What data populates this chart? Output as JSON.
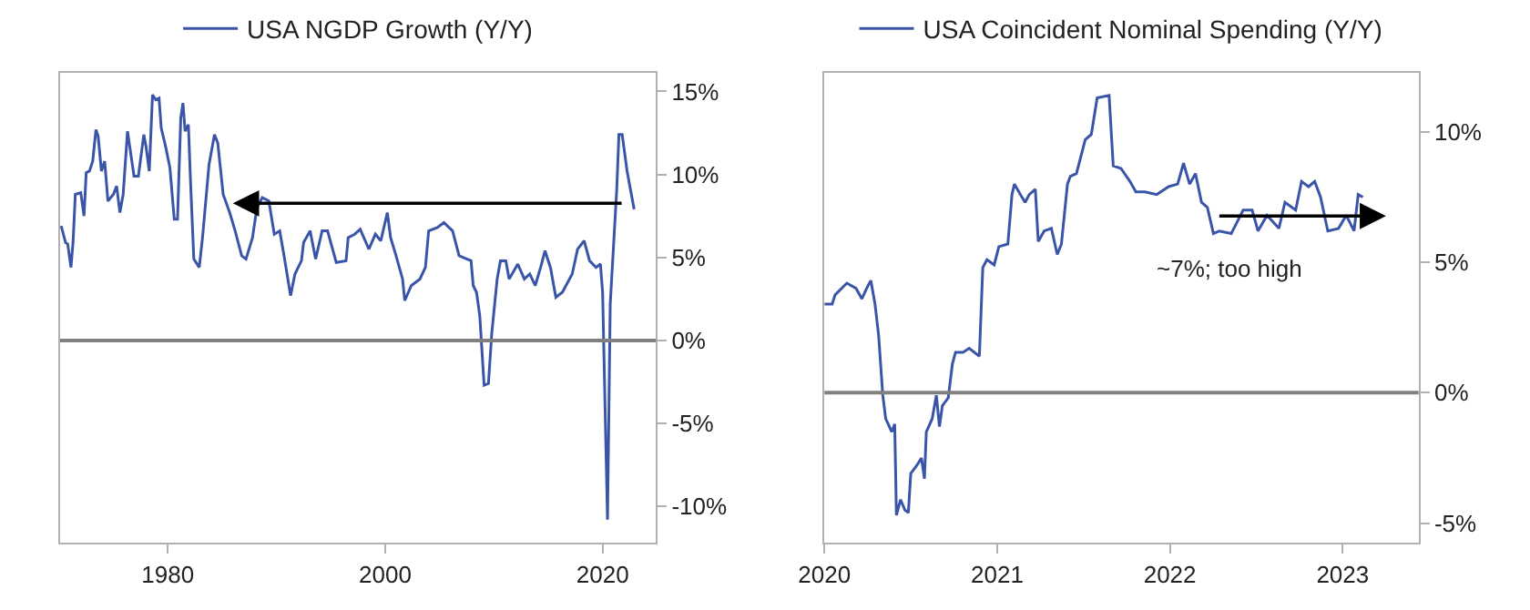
{
  "chart_data": [
    {
      "type": "line",
      "xlim": [
        1970.1,
        2024.9
      ],
      "ylim": [
        -12.2,
        16.1
      ],
      "xticks": [
        1980,
        2000,
        2020
      ],
      "yticks": [
        {
          "value": -10,
          "label": "-10%"
        },
        {
          "value": -5,
          "label": "-5%"
        },
        {
          "value": 0,
          "label": "0%"
        },
        {
          "value": 5,
          "label": "5%"
        },
        {
          "value": 10,
          "label": "10%"
        },
        {
          "value": 15,
          "label": "15%"
        }
      ],
      "grid": false,
      "legend": "top",
      "marker": "none",
      "line_style": "solid",
      "ref_lines": [
        {
          "axis": "y",
          "value": 0,
          "color": "#808080"
        }
      ],
      "series": [
        {
          "name": "USA NGDP Growth (Y/Y)",
          "color": "#3a55a8",
          "x": [
            1970.2,
            1970.6,
            1970.8,
            1971.1,
            1971.3,
            1971.5,
            1972.0,
            1972.3,
            1972.5,
            1972.8,
            1973.1,
            1973.4,
            1973.6,
            1973.9,
            1974.2,
            1974.5,
            1975.0,
            1975.3,
            1975.6,
            1975.9,
            1976.3,
            1976.5,
            1976.9,
            1977.3,
            1977.8,
            1978.0,
            1978.3,
            1978.6,
            1978.9,
            1979.2,
            1979.4,
            1979.8,
            1980.2,
            1980.6,
            1980.9,
            1981.2,
            1981.4,
            1981.6,
            1981.9,
            1982.1,
            1982.4,
            1982.9,
            1983.2,
            1983.8,
            1984.3,
            1984.6,
            1985.1,
            1985.7,
            1986.2,
            1986.8,
            1987.2,
            1987.8,
            1988.2,
            1988.7,
            1989.3,
            1989.8,
            1990.3,
            1990.7,
            1991.3,
            1991.7,
            1992.3,
            1992.5,
            1993.1,
            1993.6,
            1994.2,
            1994.7,
            1995.5,
            1996.4,
            1996.6,
            1997.2,
            1997.7,
            1998.5,
            1999.1,
            1999.6,
            2000.2,
            2000.5,
            2001.0,
            2001.6,
            2001.8,
            2002.4,
            2003.2,
            2003.7,
            2004.0,
            2004.8,
            2005.4,
            2006.2,
            2006.8,
            2007.9,
            2008.1,
            2008.4,
            2008.7,
            2009.1,
            2009.5,
            2009.8,
            2010.3,
            2010.6,
            2011.1,
            2011.4,
            2012.2,
            2012.8,
            2013.3,
            2013.8,
            2014.3,
            2014.7,
            2015.2,
            2015.7,
            2016.3,
            2017.2,
            2017.7,
            2018.3,
            2018.8,
            2019.4,
            2019.8,
            2020.0,
            2020.45,
            2020.7,
            2021.3,
            2021.5,
            2021.8,
            2022.25,
            2022.9
          ],
          "values": [
            6.9,
            5.9,
            5.8,
            4.4,
            6.0,
            8.8,
            8.9,
            7.5,
            10.1,
            10.2,
            10.8,
            12.7,
            12.3,
            10.2,
            10.8,
            8.4,
            8.8,
            9.3,
            7.7,
            8.8,
            12.6,
            11.7,
            9.9,
            9.9,
            12.4,
            11.7,
            10.2,
            14.8,
            14.5,
            14.6,
            12.8,
            11.7,
            10.4,
            7.3,
            7.3,
            13.4,
            14.3,
            12.6,
            13.0,
            9.5,
            4.9,
            4.4,
            6.2,
            10.6,
            12.4,
            11.9,
            8.8,
            7.7,
            6.6,
            5.1,
            4.9,
            6.2,
            8.0,
            8.6,
            8.4,
            6.4,
            6.6,
            5.1,
            2.7,
            4.0,
            4.8,
            5.9,
            6.6,
            4.9,
            6.6,
            6.6,
            4.7,
            4.8,
            6.2,
            6.4,
            6.7,
            5.5,
            6.4,
            6.0,
            7.7,
            6.2,
            5.1,
            3.7,
            2.4,
            3.3,
            3.7,
            4.4,
            6.6,
            6.8,
            7.1,
            6.6,
            5.1,
            4.8,
            3.3,
            2.9,
            1.5,
            -2.7,
            -2.6,
            0.4,
            3.7,
            4.8,
            4.8,
            3.7,
            4.6,
            3.7,
            4.0,
            3.3,
            4.4,
            5.4,
            4.4,
            2.6,
            2.9,
            4.0,
            5.5,
            6.0,
            4.8,
            4.4,
            4.6,
            2.9,
            -10.8,
            2.2,
            9.1,
            12.4,
            12.4,
            10.2,
            7.9
          ]
        }
      ]
    },
    {
      "type": "line",
      "xlim": [
        2020.0,
        2023.44
      ],
      "ylim": [
        -5.76,
        12.25
      ],
      "xticks": [
        2020,
        2021,
        2022,
        2023
      ],
      "yticks": [
        {
          "value": -5,
          "label": "-5%"
        },
        {
          "value": 0,
          "label": "0%"
        },
        {
          "value": 5,
          "label": "5%"
        },
        {
          "value": 10,
          "label": "10%"
        }
      ],
      "grid": false,
      "legend": "top",
      "marker": "none",
      "line_style": "solid",
      "ref_lines": [
        {
          "axis": "y",
          "value": 0,
          "color": "#808080"
        }
      ],
      "annotations": [
        "~7%; too high"
      ],
      "series": [
        {
          "name": "USA Coincident Nominal Spending (Y/Y)",
          "color": "#3a55a8",
          "x": [
            2020.0,
            2020.045,
            2020.062,
            2020.13,
            2020.183,
            2020.217,
            2020.252,
            2020.269,
            2020.293,
            2020.314,
            2020.338,
            2020.355,
            2020.39,
            2020.407,
            2020.417,
            2020.441,
            2020.466,
            2020.486,
            2020.5,
            2020.534,
            2020.562,
            2020.579,
            2020.59,
            2020.624,
            2020.648,
            2020.666,
            2020.683,
            2020.717,
            2020.741,
            2020.759,
            2020.803,
            2020.838,
            2020.897,
            2020.917,
            2020.941,
            2020.983,
            2021.01,
            2021.062,
            2021.086,
            2021.1,
            2021.134,
            2021.162,
            2021.186,
            2021.221,
            2021.238,
            2021.272,
            2021.314,
            2021.348,
            2021.372,
            2021.407,
            2021.424,
            2021.459,
            2021.51,
            2021.545,
            2021.579,
            2021.648,
            2021.672,
            2021.717,
            2021.769,
            2021.803,
            2021.855,
            2021.924,
            2021.993,
            2022.045,
            2022.079,
            2022.114,
            2022.148,
            2022.183,
            2022.217,
            2022.252,
            2022.286,
            2022.355,
            2022.424,
            2022.476,
            2022.51,
            2022.562,
            2022.631,
            2022.666,
            2022.728,
            2022.762,
            2022.803,
            2022.838,
            2022.872,
            2022.914,
            2022.976,
            2023.021,
            2023.066,
            2023.09,
            2023.117
          ],
          "values": [
            3.4,
            3.4,
            3.75,
            4.2,
            4.0,
            3.6,
            4.1,
            4.3,
            3.4,
            2.2,
            -0.1,
            -1.0,
            -1.5,
            -1.2,
            -4.7,
            -4.1,
            -4.5,
            -4.6,
            -3.1,
            -2.8,
            -2.5,
            -3.3,
            -1.5,
            -1.0,
            -0.1,
            -1.3,
            -0.5,
            -0.2,
            1.1,
            1.55,
            1.55,
            1.7,
            1.4,
            4.8,
            5.1,
            4.9,
            5.6,
            5.7,
            7.6,
            8.0,
            7.6,
            7.3,
            7.6,
            7.8,
            5.8,
            6.2,
            6.3,
            5.3,
            5.7,
            8.0,
            8.3,
            8.4,
            9.7,
            9.9,
            11.3,
            11.4,
            8.7,
            8.6,
            8.1,
            7.7,
            7.7,
            7.6,
            7.9,
            8.0,
            8.8,
            8.0,
            8.4,
            7.3,
            7.1,
            6.1,
            6.2,
            6.1,
            7.0,
            7.0,
            6.2,
            6.8,
            6.3,
            7.3,
            7.0,
            8.1,
            7.9,
            8.1,
            7.5,
            6.2,
            6.3,
            6.8,
            6.2,
            7.6,
            7.5
          ]
        }
      ]
    }
  ]
}
